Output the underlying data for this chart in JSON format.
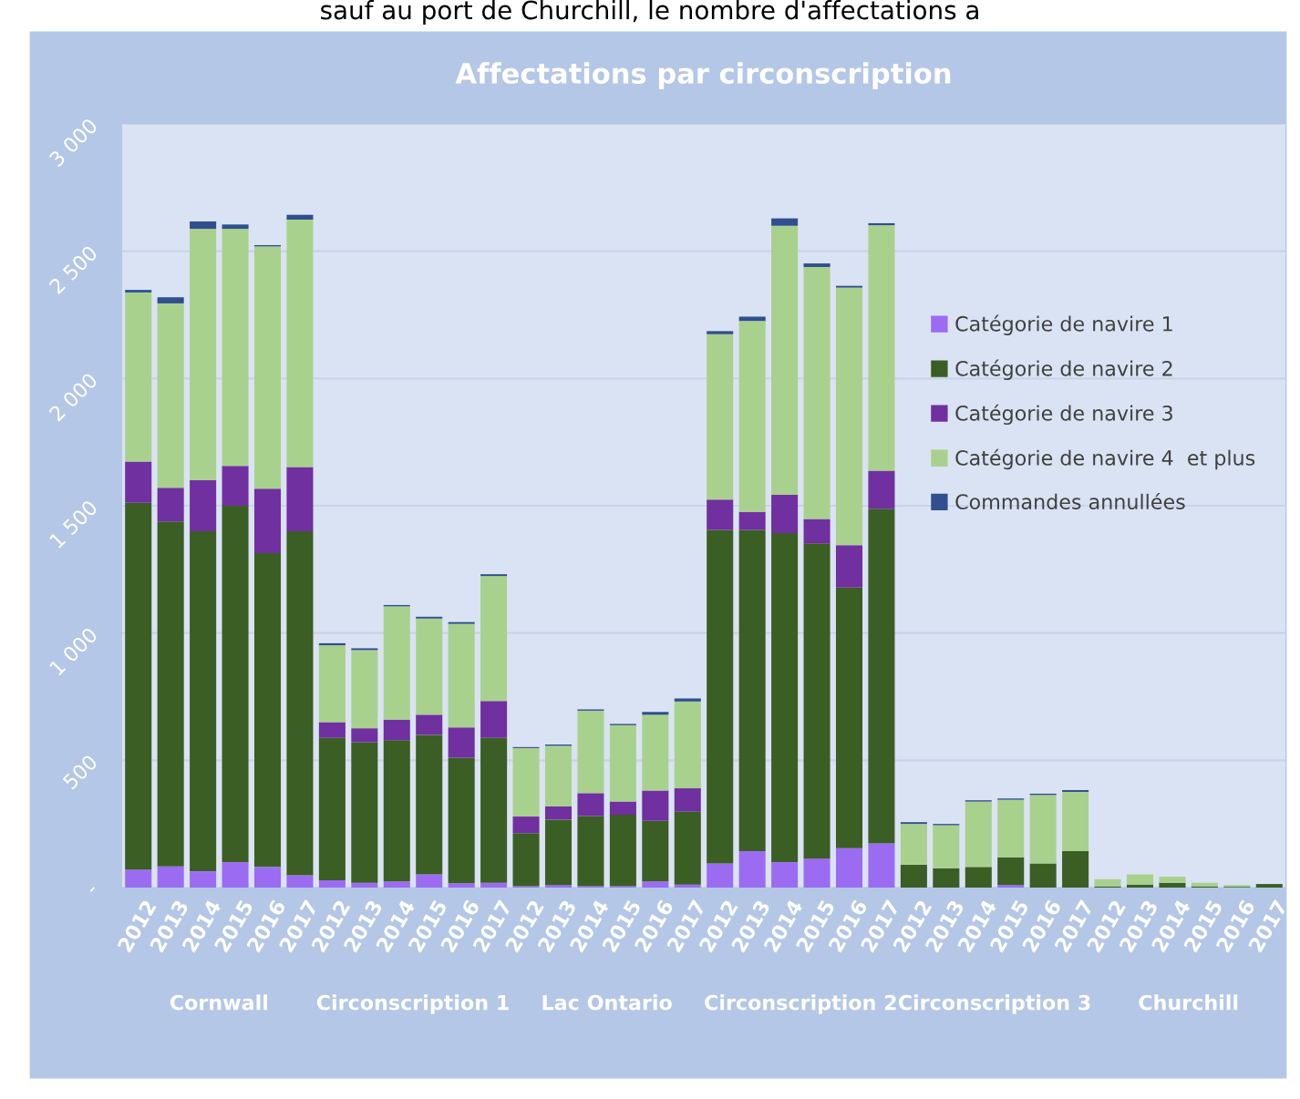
{
  "chart_data": {
    "type": "bar",
    "stacked": true,
    "title": "Affectations par circonscription",
    "categories": [
      "2012",
      "2013",
      "2014",
      "2015",
      "2016",
      "2017",
      "2012",
      "2013",
      "2014",
      "2015",
      "2016",
      "2017",
      "2012",
      "2013",
      "2014",
      "2015",
      "2016",
      "2017",
      "2012",
      "2013",
      "2014",
      "2015",
      "2016",
      "2017",
      "2012",
      "2013",
      "2014",
      "2015",
      "2016",
      "2017",
      "2012",
      "2013",
      "2014",
      "2015",
      "2016",
      "2017"
    ],
    "series": [
      {
        "name": "Catégorie de navire 1",
        "color": "#9b6cf2",
        "values": [
          71,
          83,
          64,
          100,
          81,
          48,
          29,
          19,
          24,
          52,
          17,
          19,
          5,
          10,
          5,
          5,
          24,
          12,
          95,
          143,
          100,
          114,
          155,
          174,
          0,
          0,
          0,
          10,
          0,
          0,
          0,
          0,
          0,
          0,
          0,
          0
        ]
      },
      {
        "name": "Catégorie de navire 2",
        "color": "#3b5e24",
        "values": [
          1441,
          1355,
          1336,
          1400,
          1233,
          1352,
          559,
          552,
          555,
          548,
          493,
          569,
          209,
          257,
          276,
          281,
          238,
          286,
          1310,
          1262,
          1293,
          1238,
          1024,
          1314,
          90,
          76,
          81,
          109,
          95,
          143,
          5,
          12,
          19,
          5,
          3,
          14
        ]
      },
      {
        "name": "Catégorie de navire 3",
        "color": "#70309f",
        "values": [
          162,
          133,
          200,
          157,
          253,
          252,
          62,
          55,
          81,
          79,
          119,
          145,
          65,
          52,
          90,
          52,
          119,
          92,
          119,
          71,
          150,
          96,
          166,
          150,
          0,
          0,
          0,
          0,
          0,
          0,
          0,
          0,
          0,
          0,
          0,
          0
        ]
      },
      {
        "name": "Catégorie de navire 4  et plus",
        "color": "#a9d18e",
        "values": [
          664,
          724,
          988,
          931,
          952,
          972,
          302,
          307,
          445,
          378,
          407,
          491,
          269,
          238,
          324,
          300,
          298,
          341,
          650,
          750,
          1057,
          990,
          1012,
          964,
          160,
          169,
          257,
          226,
          269,
          233,
          28,
          40,
          24,
          14,
          7,
          0
        ]
      },
      {
        "name": "Commandes annullées",
        "color": "#2f4f8f",
        "values": [
          10,
          24,
          29,
          17,
          5,
          19,
          8,
          7,
          5,
          7,
          7,
          7,
          4,
          5,
          5,
          5,
          11,
          12,
          12,
          17,
          29,
          14,
          7,
          8,
          7,
          5,
          5,
          5,
          5,
          7,
          0,
          0,
          0,
          0,
          0,
          0
        ]
      }
    ],
    "ylim": [
      0,
      3000
    ],
    "yticks": [
      {
        "value": 0,
        "label": "-"
      },
      500,
      {
        "value": 1000,
        "label": "1 000"
      },
      {
        "value": 1500,
        "label": "1 500"
      },
      {
        "value": 2000,
        "label": "2 000"
      },
      {
        "value": 2500,
        "label": "2 500"
      },
      {
        "value": 3000,
        "label": "3 000"
      }
    ],
    "grid": "y",
    "legend": "right",
    "annotations": [
      "sauf au port de Churchill, le nombre d'affectations a",
      "Cornwall",
      "Circonscription 1",
      "Lac Ontario",
      "Circonscription 2",
      "Circonscription 3",
      "Churchill"
    ]
  }
}
